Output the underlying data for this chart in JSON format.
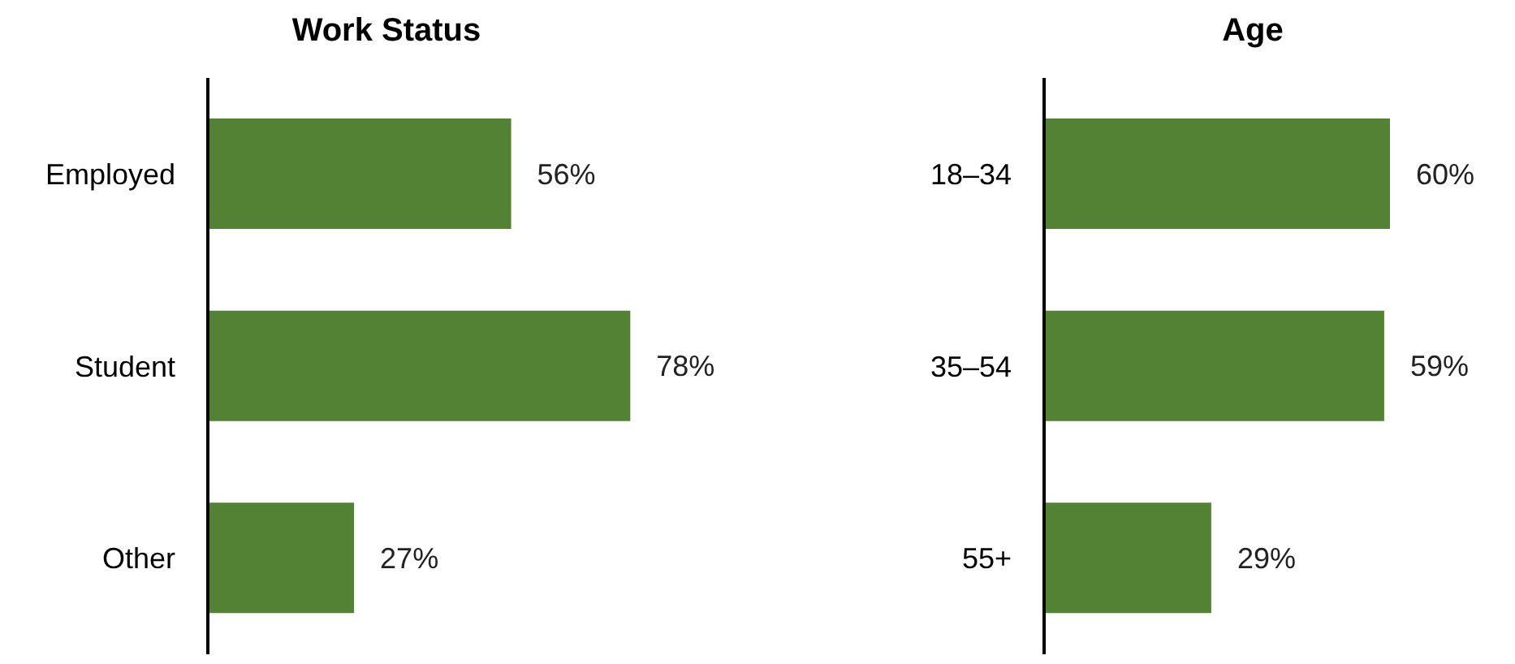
{
  "chart_data": [
    {
      "type": "bar",
      "orientation": "horizontal",
      "title": "Work Status",
      "categories": [
        "Employed",
        "Student",
        "Other"
      ],
      "values": [
        56,
        78,
        27
      ],
      "value_labels": [
        "56%",
        "78%",
        "27%"
      ],
      "color": "#548235"
    },
    {
      "type": "bar",
      "orientation": "horizontal",
      "title": "Age",
      "categories": [
        "18–34",
        "35–54",
        "55+"
      ],
      "values": [
        60,
        59,
        29
      ],
      "value_labels": [
        "60%",
        "59%",
        "29%"
      ],
      "color": "#548235"
    }
  ]
}
